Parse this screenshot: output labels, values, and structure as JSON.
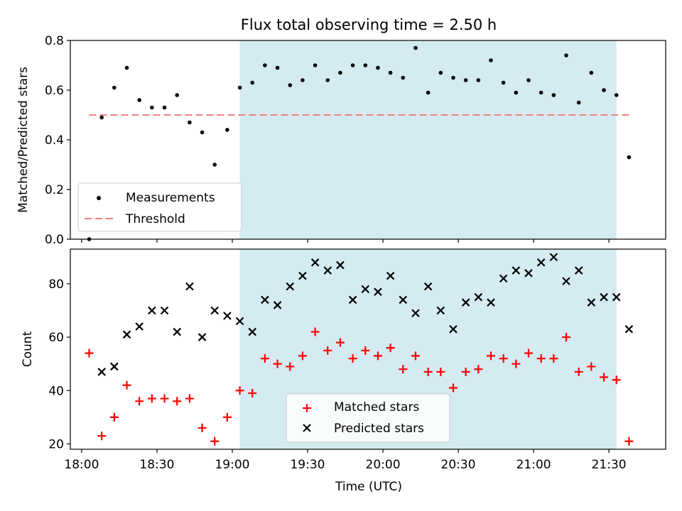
{
  "title": "Flux total observing time = 2.50 h",
  "xlabel": "Time (UTC)",
  "x_ticks": [
    "18:00",
    "18:30",
    "19:00",
    "19:30",
    "20:00",
    "20:30",
    "21:00",
    "21:30"
  ],
  "colors": {
    "shade": "#d4ebf1",
    "threshold": "#f08080",
    "measurement": "#000000",
    "matched": "#ff0000",
    "predicted": "#000000"
  },
  "chart_data": [
    {
      "type": "scatter",
      "ylabel": "Matched/Predicted stars",
      "xlim": [
        "18:00",
        "21:50"
      ],
      "ylim": [
        0,
        0.8
      ],
      "y_ticks": [
        0.0,
        0.2,
        0.4,
        0.6,
        0.8
      ],
      "y_tick_labels": [
        "0.0",
        "0.2",
        "0.4",
        "0.6",
        "0.8"
      ],
      "shaded_interval": [
        "19:03",
        "21:33"
      ],
      "legend_placement": "lower-left",
      "threshold": {
        "name": "Threshold",
        "value": 0.5,
        "style": "dashed"
      },
      "series": [
        {
          "name": "Measurements",
          "marker": "dot",
          "x": [
            "18:03",
            "18:08",
            "18:13",
            "18:18",
            "18:23",
            "18:28",
            "18:33",
            "18:38",
            "18:43",
            "18:48",
            "18:53",
            "18:58",
            "19:03",
            "19:08",
            "19:13",
            "19:18",
            "19:23",
            "19:28",
            "19:33",
            "19:38",
            "19:43",
            "19:48",
            "19:53",
            "19:58",
            "20:03",
            "20:08",
            "20:13",
            "20:18",
            "20:23",
            "20:28",
            "20:33",
            "20:38",
            "20:43",
            "20:48",
            "20:53",
            "20:58",
            "21:03",
            "21:08",
            "21:13",
            "21:18",
            "21:23",
            "21:28",
            "21:33",
            "21:38"
          ],
          "y": [
            0.0,
            0.49,
            0.61,
            0.69,
            0.56,
            0.53,
            0.53,
            0.58,
            0.47,
            0.43,
            0.3,
            0.44,
            0.61,
            0.63,
            0.7,
            0.69,
            0.62,
            0.64,
            0.7,
            0.64,
            0.67,
            0.7,
            0.7,
            0.69,
            0.67,
            0.65,
            0.77,
            0.59,
            0.67,
            0.65,
            0.64,
            0.64,
            0.72,
            0.63,
            0.59,
            0.64,
            0.59,
            0.58,
            0.74,
            0.55,
            0.67,
            0.6,
            0.58,
            0.33
          ]
        }
      ]
    },
    {
      "type": "scatter",
      "ylabel": "Count",
      "xlim": [
        "18:00",
        "21:50"
      ],
      "ylim": [
        18,
        93
      ],
      "y_ticks": [
        20,
        40,
        60,
        80
      ],
      "y_tick_labels": [
        "20",
        "40",
        "60",
        "80"
      ],
      "shaded_interval": [
        "19:03",
        "21:33"
      ],
      "legend_placement": "lower-center",
      "series": [
        {
          "name": "Matched stars",
          "marker": "plus",
          "x": [
            "18:03",
            "18:08",
            "18:13",
            "18:18",
            "18:23",
            "18:28",
            "18:33",
            "18:38",
            "18:43",
            "18:48",
            "18:53",
            "18:58",
            "19:03",
            "19:08",
            "19:13",
            "19:18",
            "19:23",
            "19:28",
            "19:33",
            "19:38",
            "19:43",
            "19:48",
            "19:53",
            "19:58",
            "20:03",
            "20:08",
            "20:13",
            "20:18",
            "20:23",
            "20:28",
            "20:33",
            "20:38",
            "20:43",
            "20:48",
            "20:53",
            "20:58",
            "21:03",
            "21:08",
            "21:13",
            "21:18",
            "21:23",
            "21:28",
            "21:33",
            "21:38"
          ],
          "y": [
            54,
            23,
            30,
            42,
            36,
            37,
            37,
            36,
            37,
            26,
            21,
            30,
            40,
            39,
            52,
            50,
            49,
            53,
            62,
            55,
            58,
            52,
            55,
            53,
            56,
            48,
            53,
            47,
            47,
            41,
            47,
            48,
            53,
            52,
            50,
            54,
            52,
            52,
            60,
            47,
            49,
            45,
            44,
            21
          ]
        },
        {
          "name": "Predicted stars",
          "marker": "x",
          "x": [
            "18:08",
            "18:13",
            "18:18",
            "18:23",
            "18:28",
            "18:33",
            "18:38",
            "18:43",
            "18:48",
            "18:53",
            "18:58",
            "19:03",
            "19:08",
            "19:13",
            "19:18",
            "19:23",
            "19:28",
            "19:33",
            "19:38",
            "19:43",
            "19:48",
            "19:53",
            "19:58",
            "20:03",
            "20:08",
            "20:13",
            "20:18",
            "20:23",
            "20:28",
            "20:33",
            "20:38",
            "20:43",
            "20:48",
            "20:53",
            "20:58",
            "21:03",
            "21:08",
            "21:13",
            "21:18",
            "21:23",
            "21:28",
            "21:33",
            "21:38"
          ],
          "y": [
            47,
            49,
            61,
            64,
            70,
            70,
            62,
            79,
            60,
            70,
            68,
            66,
            62,
            74,
            72,
            79,
            83,
            88,
            85,
            87,
            74,
            78,
            77,
            83,
            74,
            69,
            79,
            70,
            63,
            73,
            75,
            73,
            82,
            85,
            84,
            88,
            90,
            81,
            85,
            73,
            75,
            75,
            63
          ]
        }
      ]
    }
  ]
}
